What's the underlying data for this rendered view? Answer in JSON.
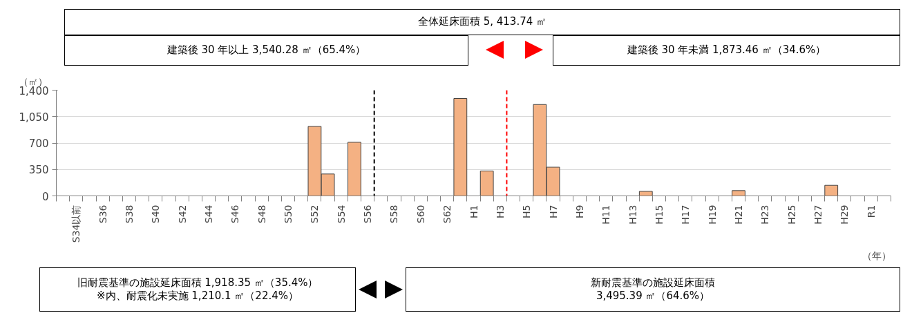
{
  "chart_data": {
    "type": "bar",
    "categories": [
      null,
      "S34以前",
      null,
      "S36",
      null,
      "S38",
      null,
      "S40",
      null,
      "S42",
      null,
      "S44",
      null,
      "S46",
      null,
      "S48",
      null,
      "S50",
      null,
      "S52",
      null,
      "S54",
      null,
      "S56",
      null,
      "S58",
      null,
      "S60",
      null,
      "S62",
      null,
      "H1",
      null,
      "H3",
      null,
      "H5",
      null,
      "H7",
      null,
      "H9",
      null,
      "H11",
      null,
      "H13",
      null,
      "H15",
      null,
      "H17",
      null,
      "H19",
      null,
      "H21",
      null,
      "H23",
      null,
      "H25",
      null,
      "H27",
      null,
      "H29",
      null,
      "R1",
      null
    ],
    "values": [
      0,
      0,
      0,
      0,
      0,
      0,
      0,
      0,
      0,
      0,
      0,
      0,
      0,
      0,
      0,
      0,
      0,
      0,
      0,
      920,
      290,
      0,
      710,
      0,
      0,
      0,
      0,
      0,
      0,
      0,
      1290,
      0,
      330,
      0,
      0,
      0,
      1210,
      380,
      0,
      0,
      0,
      0,
      0,
      0,
      60,
      0,
      0,
      0,
      0,
      0,
      0,
      70,
      0,
      0,
      0,
      0,
      0,
      0,
      140,
      0,
      0,
      0,
      0
    ],
    "color": "#f4b183",
    "ylabel": "（㎡）",
    "xlabel": "（年）",
    "ylim": [
      0,
      1400
    ],
    "yticks": [
      0,
      350,
      700,
      {
        "value": 1050,
        "label": "1,050"
      },
      {
        "value": 1400,
        "label": "1,400"
      }
    ],
    "grid": "y",
    "annotations": [
      "全体延床面積 5, 413.74 ㎡",
      "建築後 30 年以上 3,540.28 ㎡（65.4%）",
      "建築後 30 年未満 1,873.46 ㎡（34.6%）",
      "旧耐震基準の施設延床面積 1,918.35 ㎡（35.4%）\n※内、耐震化未実施 1,210.1 ㎡（22.4%）",
      "新耐震基準の施設延床面積\n3,495.39 ㎡（64.6%）"
    ]
  }
}
